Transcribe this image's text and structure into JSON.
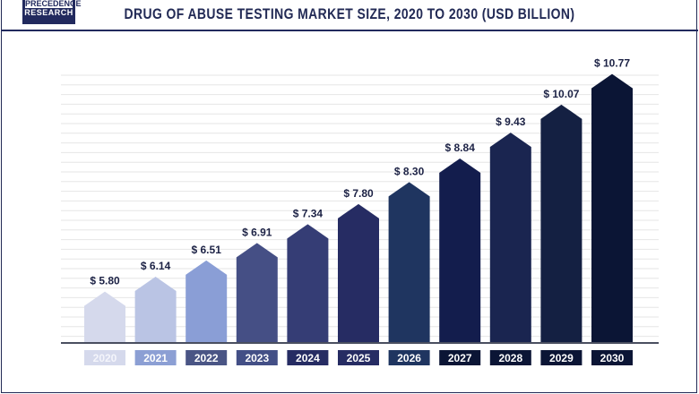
{
  "logo": {
    "line1": "PRECEDENCE",
    "line2": "RESEARCH"
  },
  "chart_data": {
    "type": "bar",
    "title": "DRUG OF ABUSE TESTING MARKET SIZE, 2020 TO 2030 (USD BILLION)",
    "categories": [
      "2020",
      "2021",
      "2022",
      "2023",
      "2024",
      "2025",
      "2026",
      "2027",
      "2028",
      "2029",
      "2030"
    ],
    "values": [
      5.8,
      6.14,
      6.51,
      6.91,
      7.34,
      7.8,
      8.3,
      8.84,
      9.43,
      10.07,
      10.77
    ],
    "data_labels": [
      "$ 5.80",
      "$ 6.14",
      "$ 6.51",
      "$ 6.91",
      "$ 7.34",
      "$ 7.80",
      "$ 8.30",
      "$ 8.84",
      "$ 9.43",
      "$ 10.07",
      "$ 10.77"
    ],
    "bar_colors": [
      "#d5d9ec",
      "#bac4e4",
      "#8a9ed6",
      "#454f85",
      "#353d75",
      "#262c63",
      "#1f3560",
      "#131d4d",
      "#1a2550",
      "#142042",
      "#0b1535"
    ],
    "label_box_colors": [
      "#d5d9ec",
      "#8c9fd4",
      "#4a5585",
      "#434f86",
      "#262c63",
      "#262c63",
      "#1f3560",
      "#0b1535",
      "#0b1535",
      "#0b1535",
      "#0b1535"
    ],
    "grid": true,
    "legend": "none"
  }
}
